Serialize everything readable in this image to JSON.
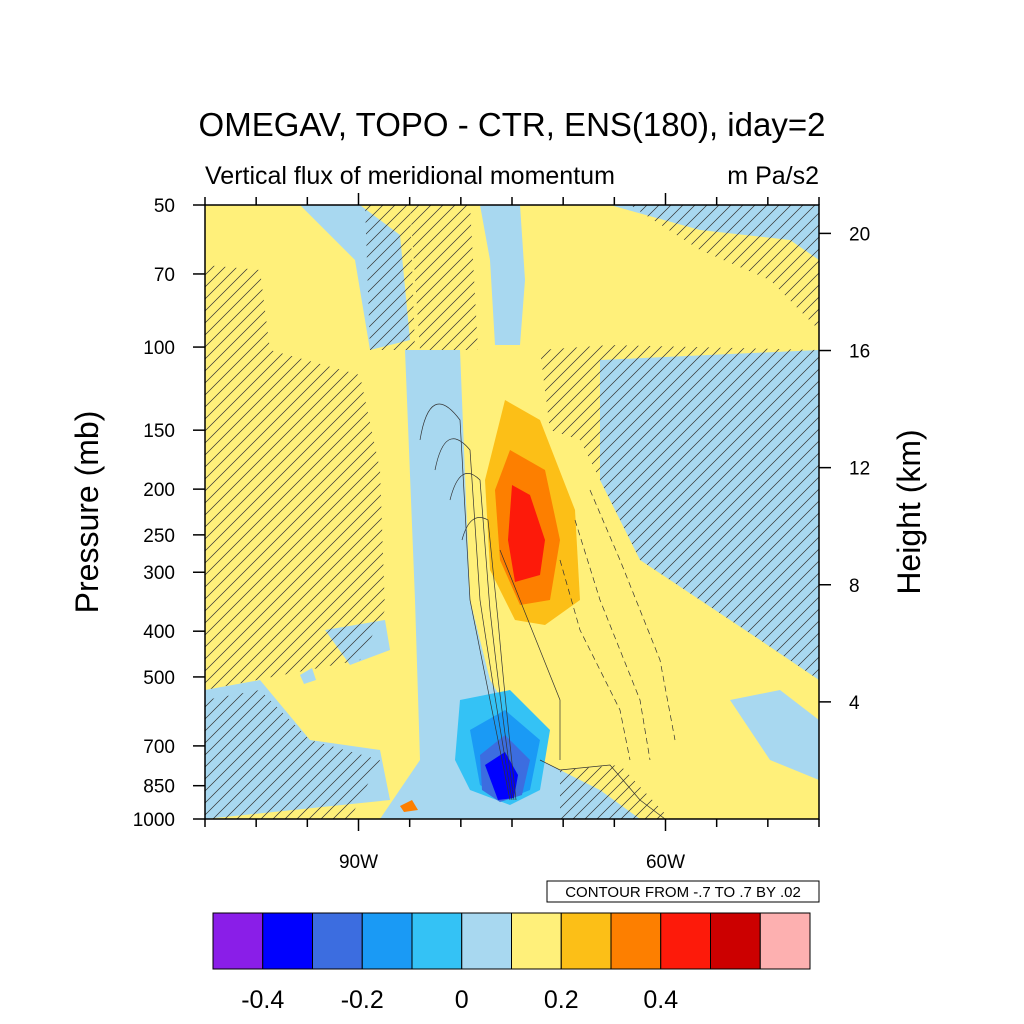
{
  "chart_data": {
    "type": "heatmap",
    "title": "OMEGAV, TOPO - CTR, ENS(180), iday=2",
    "subtitle_left": "Vertical flux of meridional momentum",
    "subtitle_right": "m Pa/s2",
    "ylabel": "Pressure (mb)",
    "ylabel_right": "Height (km)",
    "y_scale": "log",
    "y_reversed": true,
    "ylim": [
      1000,
      50
    ],
    "y_ticks": [
      50,
      70,
      100,
      150,
      200,
      250,
      300,
      400,
      500,
      700,
      850,
      1000
    ],
    "y_tick_labels": [
      "50",
      "70",
      "100",
      "150",
      "200",
      "250",
      "300",
      "400",
      "500",
      "700",
      "850",
      "1000"
    ],
    "y_right_ticks_km": [
      4,
      8,
      12,
      16,
      20
    ],
    "y_right_tick_labels": [
      "4",
      "8",
      "12",
      "16",
      "20"
    ],
    "xlim_deg_east": [
      -105,
      -45
    ],
    "x_ticks_deg_east": [
      -90,
      -60
    ],
    "x_tick_labels": [
      "90W",
      "60W"
    ],
    "contour_info": "CONTOUR FROM -.7 TO .7 BY .02",
    "colorbar": {
      "colors": [
        "#8a1ee8",
        "#0000ff",
        "#3c6de0",
        "#1a9af5",
        "#34c2f5",
        "#a8d8f0",
        "#fff07a",
        "#fcbf17",
        "#fd7f00",
        "#fd1a0a",
        "#cc0000",
        "#fdb0b0"
      ],
      "tick_values": [
        -0.4,
        -0.2,
        0,
        0.2,
        0.4
      ],
      "tick_labels": [
        "-0.4",
        "-0.2",
        "0",
        "0.2",
        "0.4"
      ]
    },
    "hatching": "significant regions (diagonal hatch)",
    "field_features": [
      {
        "name": "negative maximum",
        "lon": -72,
        "pressure_mb": 850,
        "value": -0.45
      },
      {
        "name": "positive maximum",
        "lon": -70,
        "pressure_mb": 270,
        "value": 0.35
      }
    ]
  }
}
